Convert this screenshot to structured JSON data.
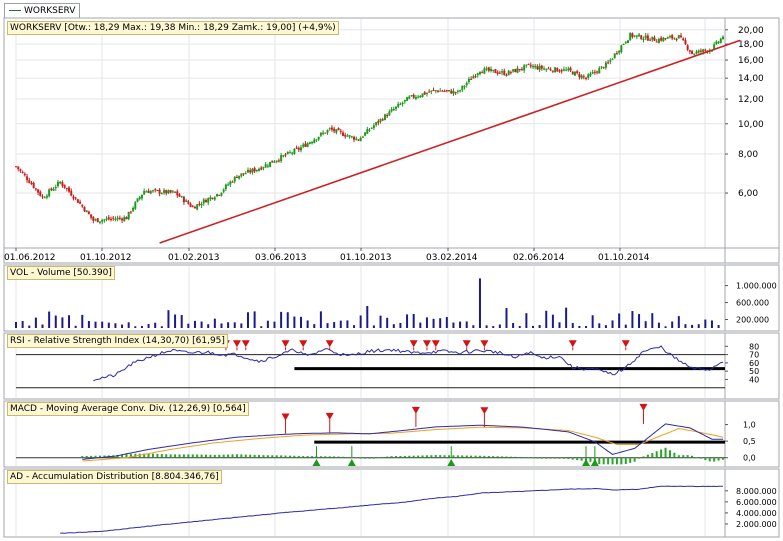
{
  "legend": {
    "symbol": "WORKSERV"
  },
  "chart_data": [
    {
      "type": "candlestick",
      "title": "WORKSERV [Otw.: 18,29  Max.: 19,38  Min.: 18,29  Zamk.: 19,00] (+4,9%)",
      "y_scale": "log",
      "ylim": [
        4.0,
        21.5
      ],
      "y_ticks": [
        "20,00",
        "18,00",
        "16,00",
        "14,00",
        "12,00",
        "10,00",
        "8,00",
        "6,00"
      ],
      "y_tick_values": [
        20,
        18,
        16,
        14,
        12,
        10,
        8,
        6
      ],
      "x_ticks": [
        "01.06.2012",
        "01.10.2012",
        "01.02.2013",
        "03.06.2013",
        "01.10.2013",
        "03.02.2014",
        "02.06.2014",
        "01.10.2014"
      ],
      "price_path_points": [
        [
          0,
          7.3
        ],
        [
          12,
          5.8
        ],
        [
          20,
          6.5
        ],
        [
          35,
          4.9
        ],
        [
          50,
          5.0
        ],
        [
          58,
          6.1
        ],
        [
          72,
          6.0
        ],
        [
          80,
          5.4
        ],
        [
          92,
          6.0
        ],
        [
          100,
          6.8
        ],
        [
          110,
          7.2
        ],
        [
          128,
          8.3
        ],
        [
          142,
          9.6
        ],
        [
          155,
          8.9
        ],
        [
          165,
          10.3
        ],
        [
          178,
          12.1
        ],
        [
          190,
          12.8
        ],
        [
          200,
          12.6
        ],
        [
          210,
          14.9
        ],
        [
          222,
          14.5
        ],
        [
          232,
          15.3
        ],
        [
          240,
          15.0
        ],
        [
          250,
          14.8
        ],
        [
          258,
          14.0
        ],
        [
          268,
          15.6
        ],
        [
          278,
          19.2
        ],
        [
          290,
          18.6
        ],
        [
          300,
          19.0
        ],
        [
          306,
          16.8
        ],
        [
          315,
          17.4
        ],
        [
          320,
          19.0
        ]
      ],
      "trendline": {
        "from": [
          "2012-10-01",
          4.15
        ],
        "to": [
          "2014-12-31",
          18.5
        ],
        "color": "#cc2222"
      },
      "last_close": 19.0
    },
    {
      "type": "bar",
      "title": "VOL - Volume [50.390]",
      "y_ticks": [
        "1.000.000",
        "600.000",
        "200.000"
      ],
      "y_tick_values": [
        1000000,
        600000,
        200000
      ],
      "ylim": [
        0,
        1250000
      ],
      "spikes": [
        [
          22,
          250000
        ],
        [
          40,
          150000
        ],
        [
          70,
          420000
        ],
        [
          90,
          220000
        ],
        [
          120,
          380000
        ],
        [
          128,
          250000
        ],
        [
          160,
          520000
        ],
        [
          177,
          320000
        ],
        [
          193,
          230000
        ],
        [
          210,
          1170000
        ],
        [
          222,
          470000
        ],
        [
          230,
          350000
        ],
        [
          248,
          480000
        ],
        [
          262,
          300000
        ],
        [
          278,
          400000
        ],
        [
          288,
          350000
        ],
        [
          300,
          280000
        ],
        [
          312,
          200000
        ]
      ]
    },
    {
      "type": "line",
      "title": "RSI - Relative Strength Index (14,30,70) [61,95]",
      "y_ticks": [
        "80",
        "70",
        "60",
        "50",
        "40"
      ],
      "y_tick_values": [
        80,
        70,
        60,
        50,
        40
      ],
      "ylim": [
        20,
        90
      ],
      "levels": [
        70,
        30
      ],
      "support_level": 53,
      "last": 61.95,
      "sell_signals": 13,
      "path": [
        [
          35,
          40
        ],
        [
          45,
          45
        ],
        [
          52,
          58
        ],
        [
          60,
          67
        ],
        [
          70,
          75
        ],
        [
          78,
          72
        ],
        [
          86,
          73
        ],
        [
          94,
          70
        ],
        [
          100,
          70
        ],
        [
          110,
          62
        ],
        [
          118,
          68
        ],
        [
          126,
          76
        ],
        [
          132,
          68
        ],
        [
          140,
          77
        ],
        [
          150,
          68
        ],
        [
          160,
          74
        ],
        [
          170,
          76
        ],
        [
          180,
          72
        ],
        [
          194,
          74
        ],
        [
          200,
          72
        ],
        [
          210,
          75
        ],
        [
          218,
          73
        ],
        [
          226,
          66
        ],
        [
          232,
          73
        ],
        [
          238,
          66
        ],
        [
          246,
          68
        ],
        [
          252,
          54
        ],
        [
          262,
          52
        ],
        [
          270,
          46
        ],
        [
          276,
          54
        ],
        [
          284,
          74
        ],
        [
          292,
          79
        ],
        [
          298,
          66
        ],
        [
          306,
          53
        ],
        [
          314,
          52
        ],
        [
          320,
          62
        ]
      ]
    },
    {
      "type": "line",
      "title": "MACD - Moving Average Conv. Div. (12,26,9) [0,564]",
      "y_ticks": [
        "1,0",
        "0,5",
        "0,0"
      ],
      "y_tick_values": [
        1.0,
        0.5,
        0.0
      ],
      "ylim": [
        -0.25,
        1.5
      ],
      "support_level": 0.47,
      "last": 0.564,
      "buy_signals": 5,
      "sell_signals": 5,
      "macd_path": [
        [
          30,
          -0.05
        ],
        [
          45,
          0.05
        ],
        [
          60,
          0.25
        ],
        [
          80,
          0.45
        ],
        [
          100,
          0.62
        ],
        [
          120,
          0.7
        ],
        [
          130,
          0.73
        ],
        [
          145,
          0.75
        ],
        [
          160,
          0.72
        ],
        [
          175,
          0.82
        ],
        [
          190,
          0.93
        ],
        [
          210,
          0.98
        ],
        [
          230,
          0.92
        ],
        [
          250,
          0.78
        ],
        [
          262,
          0.48
        ],
        [
          270,
          0.1
        ],
        [
          280,
          0.28
        ],
        [
          294,
          1.02
        ],
        [
          305,
          0.9
        ],
        [
          315,
          0.56
        ],
        [
          320,
          0.56
        ]
      ],
      "signal_path": [
        [
          30,
          -0.1
        ],
        [
          50,
          0.0
        ],
        [
          70,
          0.25
        ],
        [
          90,
          0.45
        ],
        [
          110,
          0.58
        ],
        [
          130,
          0.68
        ],
        [
          150,
          0.72
        ],
        [
          170,
          0.74
        ],
        [
          190,
          0.85
        ],
        [
          210,
          0.92
        ],
        [
          230,
          0.9
        ],
        [
          250,
          0.82
        ],
        [
          262,
          0.62
        ],
        [
          272,
          0.4
        ],
        [
          282,
          0.4
        ],
        [
          300,
          0.88
        ],
        [
          310,
          0.76
        ],
        [
          320,
          0.62
        ]
      ]
    },
    {
      "type": "line",
      "title": "AD - Accumulation Distribution [8.804.346,76]",
      "y_ticks": [
        "8.000.000",
        "6.000.000",
        "4.000.000",
        "2.000.000"
      ],
      "y_tick_values": [
        8000000,
        6000000,
        4000000,
        2000000
      ],
      "ylim": [
        0,
        10500000
      ],
      "last": 8804346.76,
      "path": [
        [
          20,
          300000
        ],
        [
          40,
          700000
        ],
        [
          60,
          1600000
        ],
        [
          80,
          2400000
        ],
        [
          100,
          3200000
        ],
        [
          120,
          4000000
        ],
        [
          140,
          4700000
        ],
        [
          160,
          5400000
        ],
        [
          175,
          5900000
        ],
        [
          190,
          6700000
        ],
        [
          200,
          7000000
        ],
        [
          210,
          7600000
        ],
        [
          230,
          7900000
        ],
        [
          250,
          8300000
        ],
        [
          262,
          8400000
        ],
        [
          270,
          8150000
        ],
        [
          282,
          8300000
        ],
        [
          292,
          8850000
        ],
        [
          310,
          8800000
        ],
        [
          320,
          8800000
        ]
      ]
    }
  ]
}
